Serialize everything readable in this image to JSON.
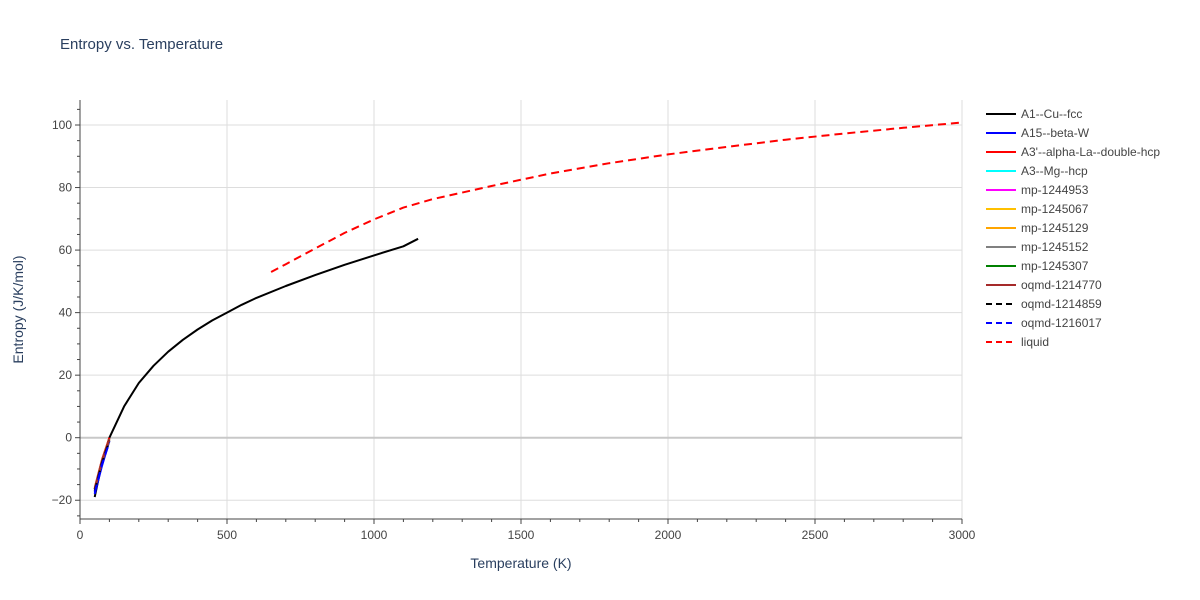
{
  "chart_data": {
    "type": "line",
    "title": "Entropy vs. Temperature",
    "xlabel": "Temperature (K)",
    "ylabel": "Entropy (J/K/mol)",
    "xlim": [
      0,
      3000
    ],
    "ylim": [
      -26,
      108
    ],
    "xticks": [
      0,
      500,
      1000,
      1500,
      2000,
      2500,
      3000
    ],
    "yticks": [
      -20,
      0,
      20,
      40,
      60,
      80,
      100
    ],
    "grid": true,
    "legend_position": "right",
    "series": [
      {
        "name": "A1--Cu--fcc",
        "color": "#000000",
        "dash": "solid",
        "x": [
          50,
          75,
          100,
          150,
          200,
          250,
          300,
          350,
          400,
          450,
          500,
          550,
          600,
          700,
          800,
          900,
          1000,
          1100,
          1150
        ],
        "y": [
          -19,
          -8,
          0,
          10,
          17.5,
          23,
          27.5,
          31.3,
          34.6,
          37.5,
          40,
          42.5,
          44.7,
          48.5,
          52,
          55.3,
          58.3,
          61.2,
          63.6
        ]
      },
      {
        "name": "A15--beta-W",
        "color": "#0000ff",
        "dash": "solid",
        "x": [
          50,
          75,
          100
        ],
        "y": [
          -18,
          -9,
          -1
        ]
      },
      {
        "name": "A3'--alpha-La--double-hcp",
        "color": "#ff0000",
        "dash": "solid",
        "x": [
          50,
          75,
          100
        ],
        "y": [
          -16,
          -7,
          0
        ]
      },
      {
        "name": "A3--Mg--hcp",
        "color": "#00ffff",
        "dash": "solid",
        "x": [
          50,
          75,
          100
        ],
        "y": [
          -16.5,
          -7.5,
          -0.5
        ]
      },
      {
        "name": "mp-1244953",
        "color": "#ff00ff",
        "dash": "solid",
        "x": [
          50,
          75,
          100
        ],
        "y": [
          -16.5,
          -7.5,
          -0.5
        ]
      },
      {
        "name": "mp-1245067",
        "color": "#ffc000",
        "dash": "solid",
        "x": [
          50,
          75,
          100
        ],
        "y": [
          -16.5,
          -7.5,
          -0.5
        ]
      },
      {
        "name": "mp-1245129",
        "color": "#ffa500",
        "dash": "solid",
        "x": [
          50,
          75,
          100
        ],
        "y": [
          -16.5,
          -7.5,
          -0.5
        ]
      },
      {
        "name": "mp-1245152",
        "color": "#808080",
        "dash": "solid",
        "x": [
          50,
          75,
          100
        ],
        "y": [
          -16.5,
          -7.5,
          -0.5
        ]
      },
      {
        "name": "mp-1245307",
        "color": "#008000",
        "dash": "solid",
        "x": [
          50,
          75,
          100
        ],
        "y": [
          -16.5,
          -7.5,
          -0.5
        ]
      },
      {
        "name": "oqmd-1214770",
        "color": "#a52a2a",
        "dash": "solid",
        "x": [
          50,
          75,
          100
        ],
        "y": [
          -16.5,
          -7.5,
          -0.5
        ]
      },
      {
        "name": "oqmd-1214859",
        "color": "#000000",
        "dash": "dash",
        "x": [
          50,
          75,
          100
        ],
        "y": [
          -17,
          -8,
          -1
        ]
      },
      {
        "name": "oqmd-1216017",
        "color": "#0000ff",
        "dash": "dash",
        "x": [
          50,
          75,
          100
        ],
        "y": [
          -17.5,
          -8.5,
          -1.5
        ]
      },
      {
        "name": "liquid",
        "color": "#ff0000",
        "dash": "dash",
        "x": [
          650,
          700,
          800,
          900,
          1000,
          1100,
          1200,
          1400,
          1600,
          1800,
          2000,
          2200,
          2400,
          2600,
          2800,
          3000
        ],
        "y": [
          53,
          55.5,
          60.5,
          65.5,
          69.8,
          73.6,
          76.3,
          80.5,
          84.5,
          87.8,
          90.6,
          93,
          95.3,
          97.3,
          99.1,
          100.8
        ]
      }
    ]
  }
}
